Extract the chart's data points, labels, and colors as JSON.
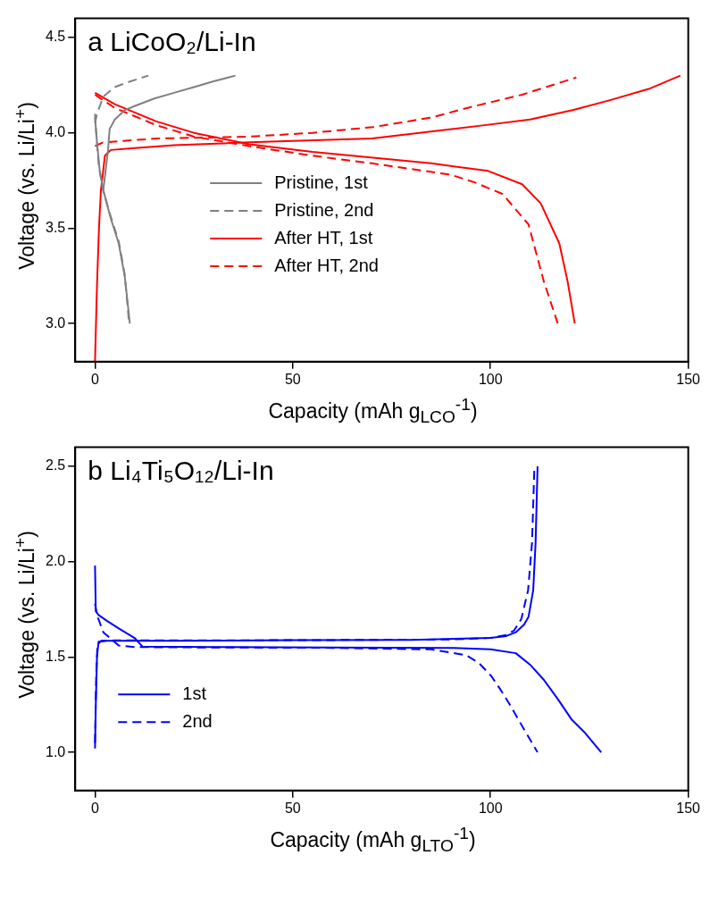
{
  "chart_data": [
    {
      "type": "line",
      "title": "a LiCoO₂/Li-In",
      "xlabel": "Capacity (mAh g$_{LCO}$$^{-1}$)",
      "ylabel": "Voltage (vs. Li/Li$^{+}$)",
      "xlim": [
        -5,
        150
      ],
      "xticks": [
        0,
        50,
        100,
        150
      ],
      "ylim": [
        2.8,
        4.6
      ],
      "yticks": [
        {
          "value": 3.0,
          "label": "3.0"
        },
        {
          "value": 3.5,
          "label": "3.5"
        },
        {
          "value": 4.0,
          "label": "4.0"
        },
        {
          "value": 4.5,
          "label": "4.5"
        }
      ],
      "legend": "bottom center",
      "marker": "none",
      "series": [
        {
          "name": "Pristine, 1st",
          "color": "#808080",
          "line_style": "solid",
          "x": [
            2.1,
            3.3,
            3.7,
            5,
            7.6,
            10,
            15,
            20,
            25,
            30,
            35.5
          ],
          "values": [
            3.7,
            3.91,
            4.02,
            4.07,
            4.12,
            4.14,
            4.18,
            4.21,
            4.24,
            4.27,
            4.3
          ]
        },
        {
          "color": "#808080",
          "line_style": "solid",
          "x": [
            0,
            0.5,
            1.2,
            2.1,
            4,
            6,
            7.5,
            8.3,
            8.8
          ],
          "values": [
            4.08,
            3.95,
            3.8,
            3.7,
            3.55,
            3.42,
            3.25,
            3.1,
            3.0
          ]
        },
        {
          "name": "Pristine, 2nd",
          "color": "#808080",
          "line_style": "dashed",
          "x": [
            0,
            0.5,
            2.1,
            5,
            9,
            13.5
          ],
          "values": [
            4.05,
            4.1,
            4.19,
            4.24,
            4.27,
            4.3
          ]
        },
        {
          "color": "#808080",
          "line_style": "dashed",
          "x": [
            0,
            0.4,
            1,
            2,
            4,
            6,
            7.5,
            8.2,
            8.6
          ],
          "values": [
            4.1,
            3.97,
            3.82,
            3.7,
            3.56,
            3.43,
            3.26,
            3.1,
            3.0
          ]
        },
        {
          "name": "After HT, 1st",
          "color": "#ff0000",
          "line_style": "solid",
          "x": [
            0,
            0.5,
            1,
            1.5,
            2.5,
            4,
            10,
            20,
            39,
            70,
            98.5,
            110,
            121,
            130,
            140,
            148
          ],
          "values": [
            2.8,
            3.2,
            3.5,
            3.7,
            3.88,
            3.91,
            3.92,
            3.935,
            3.95,
            3.97,
            4.04,
            4.07,
            4.12,
            4.17,
            4.23,
            4.3
          ]
        },
        {
          "color": "#ff0000",
          "line_style": "solid",
          "x": [
            0,
            5,
            15.5,
            25,
            39,
            55,
            70.3,
            85,
            99.4,
            108,
            112.7,
            117.4,
            119.5,
            121.3
          ],
          "values": [
            4.21,
            4.15,
            4.06,
            4.0,
            3.94,
            3.9,
            3.87,
            3.84,
            3.8,
            3.73,
            3.63,
            3.42,
            3.22,
            3.0
          ]
        },
        {
          "name": "After HT, 2nd",
          "color": "#ff0000",
          "line_style": "dashed",
          "x": [
            0,
            2,
            15.5,
            39,
            55,
            70.3,
            85,
            94,
            108,
            121.7
          ],
          "values": [
            3.93,
            3.95,
            3.97,
            3.98,
            4.0,
            4.03,
            4.08,
            4.13,
            4.2,
            4.29
          ]
        },
        {
          "color": "#ff0000",
          "line_style": "dashed",
          "x": [
            0,
            5,
            15.5,
            25,
            39,
            55,
            70,
            90,
            96,
            103,
            109.6,
            113.5,
            117
          ],
          "values": [
            4.2,
            4.13,
            4.04,
            3.98,
            3.93,
            3.88,
            3.84,
            3.78,
            3.74,
            3.68,
            3.52,
            3.22,
            3.0
          ]
        }
      ]
    },
    {
      "type": "line",
      "title": "b Li₄Ti₅O₁₂/Li-In",
      "xlabel": "Capacity (mAh g$_{LTO}$$^{-1}$)",
      "ylabel": "Voltage (vs. Li/Li$^{+}$)",
      "xlim": [
        -5,
        150
      ],
      "xticks": [
        0,
        50,
        100,
        150
      ],
      "ylim": [
        0.8,
        2.6
      ],
      "yticks": [
        {
          "value": 1.0,
          "label": "1.0"
        },
        {
          "value": 1.5,
          "label": "1.5"
        },
        {
          "value": 2.0,
          "label": "2.0"
        },
        {
          "value": 2.5,
          "label": "2.5"
        }
      ],
      "legend": "bottom left",
      "marker": "none",
      "series": [
        {
          "name": "1st",
          "color": "#0000ff",
          "line_style": "solid",
          "x": [
            0,
            0.2,
            0.5,
            0.9,
            3,
            20,
            50,
            80,
            100,
            104,
            106.4,
            108.5,
            109.6,
            110.8,
            111.4,
            111.9
          ],
          "values": [
            1.02,
            1.25,
            1.5,
            1.58,
            1.585,
            1.585,
            1.588,
            1.59,
            1.6,
            1.61,
            1.63,
            1.67,
            1.71,
            1.85,
            2.1,
            2.5
          ]
        },
        {
          "color": "#0000ff",
          "line_style": "solid",
          "x": [
            0,
            0.2,
            0.9,
            3,
            6,
            10,
            12,
            30,
            60,
            90,
            100,
            106.4,
            110,
            113.5,
            117,
            120.6,
            124,
            128
          ],
          "values": [
            1.98,
            1.74,
            1.72,
            1.69,
            1.65,
            1.6,
            1.555,
            1.552,
            1.55,
            1.548,
            1.54,
            1.52,
            1.46,
            1.38,
            1.28,
            1.17,
            1.1,
            1.0
          ]
        },
        {
          "name": "2nd",
          "color": "#0000ff",
          "line_style": "dashed",
          "x": [
            0,
            0.3,
            0.6,
            1.5,
            5,
            30,
            60,
            90,
            100,
            104,
            106,
            107.8,
            109.5,
            110.5,
            111.1
          ],
          "values": [
            1.05,
            1.4,
            1.56,
            1.585,
            1.587,
            1.587,
            1.589,
            1.592,
            1.6,
            1.615,
            1.64,
            1.7,
            1.85,
            2.1,
            2.5
          ]
        },
        {
          "color": "#0000ff",
          "line_style": "dashed",
          "x": [
            0,
            0.5,
            2.1,
            6,
            10,
            30,
            60,
            85,
            93.8,
            97,
            100.2,
            102.5,
            104.9,
            108.5,
            111.9
          ],
          "values": [
            1.78,
            1.72,
            1.63,
            1.56,
            1.552,
            1.55,
            1.548,
            1.54,
            1.51,
            1.47,
            1.4,
            1.33,
            1.25,
            1.12,
            1.0
          ]
        }
      ]
    }
  ]
}
